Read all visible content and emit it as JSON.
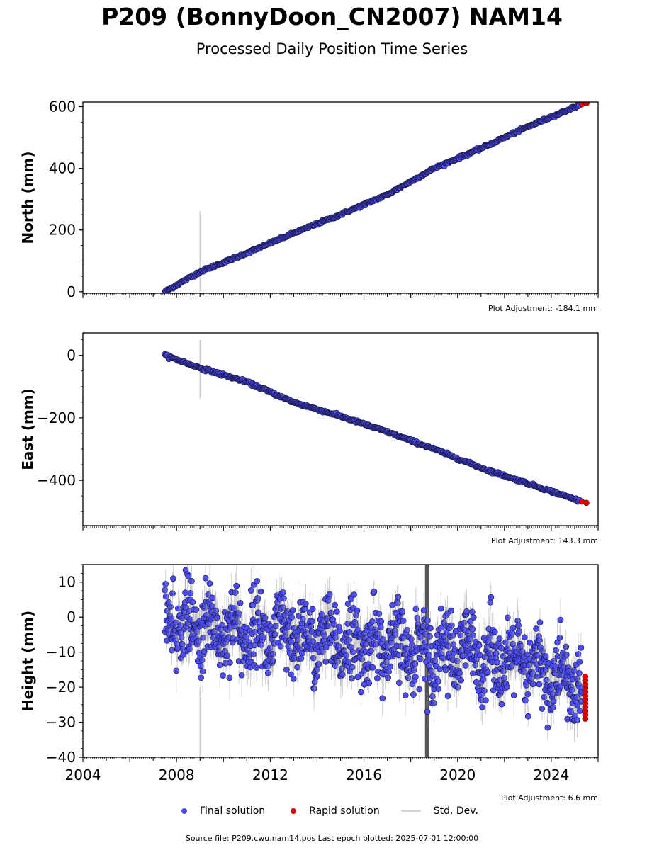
{
  "title": "P209 (BonnyDoon_CN2007) NAM14",
  "subtitle": "Processed Daily Position Time Series",
  "colors": {
    "final": "#4b4bfa",
    "rapid": "#e00000",
    "std": "#d3d3d3",
    "edge": "#1a1a4a"
  },
  "legend": {
    "final": "Final solution",
    "rapid": "Rapid solution",
    "std": "Std. Dev."
  },
  "footer": "Source file: P209.cwu.nam14.pos  Last epoch plotted: 2025-07-01 12:00:00",
  "chart_data": [
    {
      "type": "scatter",
      "ylabel": "North (mm)",
      "adjustment": "Plot Adjustment: -184.1 mm",
      "xlim": [
        2004,
        2026
      ],
      "ylim": [
        -5,
        615
      ],
      "yticks": [
        0,
        200,
        400,
        600
      ],
      "ytick_labels": [
        "0",
        "200",
        "400",
        "600"
      ],
      "series": [
        {
          "name": "Final solution",
          "x": [
            2007.5,
            2009.0,
            2011.0,
            2013.0,
            2015.0,
            2017.0,
            2019.0,
            2021.0,
            2023.0,
            2025.2
          ],
          "y": [
            0,
            65,
            125,
            190,
            250,
            315,
            400,
            465,
            535,
            605
          ]
        },
        {
          "name": "Rapid solution",
          "x": [
            2025.3,
            2025.5
          ],
          "y": [
            608,
            611
          ]
        }
      ],
      "std_outliers": [
        {
          "x": 2009.0,
          "low": 0,
          "high": 262
        }
      ]
    },
    {
      "type": "scatter",
      "ylabel": "East (mm)",
      "adjustment": "Plot Adjustment: 143.3 mm",
      "xlim": [
        2004,
        2026
      ],
      "ylim": [
        -545,
        72
      ],
      "yticks": [
        0,
        -200,
        -400
      ],
      "ytick_labels": [
        "0",
        "−200",
        "−400"
      ],
      "series": [
        {
          "name": "Final solution",
          "x": [
            2007.5,
            2009.0,
            2011.0,
            2013.0,
            2015.0,
            2017.0,
            2019.0,
            2021.0,
            2023.0,
            2025.2
          ],
          "y": [
            0,
            -40,
            -85,
            -150,
            -195,
            -245,
            -300,
            -360,
            -410,
            -465
          ]
        },
        {
          "name": "Rapid solution",
          "x": [
            2025.3,
            2025.5
          ],
          "y": [
            -468,
            -472
          ]
        }
      ],
      "std_outliers": [
        {
          "x": 2009.0,
          "low": -140,
          "high": 50
        }
      ]
    },
    {
      "type": "scatter",
      "ylabel": "Height (mm)",
      "adjustment": "Plot Adjustment: 6.6 mm",
      "xlim": [
        2004,
        2026
      ],
      "ylim": [
        -40,
        15
      ],
      "yticks": [
        10,
        0,
        -10,
        -20,
        -30,
        -40
      ],
      "ytick_labels": [
        "10",
        "0",
        "−10",
        "−20",
        "−30",
        "−40"
      ],
      "xticks": [
        2004,
        2008,
        2012,
        2016,
        2020,
        2024
      ],
      "xtick_labels": [
        "2004",
        "2008",
        "2012",
        "2016",
        "2020",
        "2024"
      ],
      "trend": {
        "x": [
          2007.5,
          2012,
          2016,
          2020,
          2023,
          2025.3
        ],
        "y": [
          -2,
          -5,
          -8,
          -10,
          -14,
          -20
        ]
      },
      "scatter_sd": 7,
      "rapid_y_range": [
        -29,
        -17
      ],
      "std_outliers": [
        {
          "x": 2009.0,
          "low": -40,
          "high": -20
        },
        {
          "x": 2018.7,
          "low": -40,
          "high": 15
        }
      ]
    }
  ]
}
